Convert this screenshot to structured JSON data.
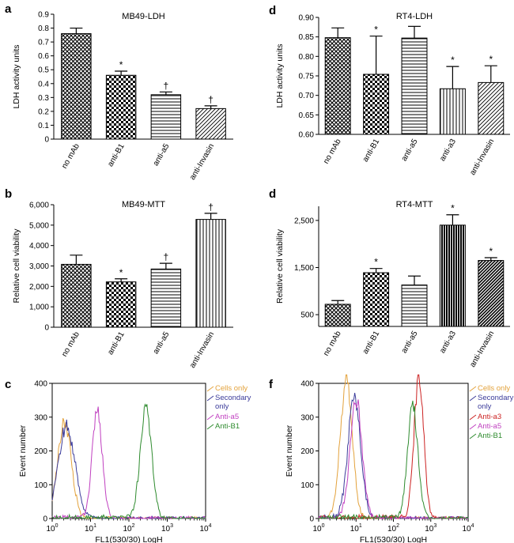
{
  "colors": {
    "cells_only": "#e3a23c",
    "secondary_only": "#3b3b9a",
    "anti_a5": "#c040c0",
    "anti_b1": "#2e8b2e",
    "anti_a3": "#cc2222"
  },
  "chart_data": [
    {
      "id": "a",
      "panel_label": "a",
      "type": "bar",
      "title": "MB49-LDH",
      "ylabel": "LDH activity units",
      "xlabel": "",
      "ylim": [
        0,
        0.9
      ],
      "ytick_values": [
        0,
        0.1,
        0.2,
        0.3,
        0.4,
        0.5,
        0.6,
        0.7,
        0.8,
        0.9
      ],
      "ytick_labels": [
        "0",
        "0.1",
        "0.2",
        "0.3",
        "0.4",
        "0.5",
        "0.6",
        "0.7",
        "0.8",
        "0.9"
      ],
      "categories": [
        "no mAb",
        "anti-B1",
        "anti-a5",
        "anti-Invasin"
      ],
      "values": [
        0.76,
        0.46,
        0.32,
        0.22
      ],
      "errors": [
        0.04,
        0.03,
        0.02,
        0.02
      ],
      "markers": [
        "",
        "*",
        "†",
        "†"
      ],
      "patterns": [
        "diamond",
        "checker",
        "hlines",
        "dhatch"
      ]
    },
    {
      "id": "d1",
      "panel_label": "d",
      "type": "bar",
      "title": "RT4-LDH",
      "ylabel": "LDH activity units",
      "xlabel": "",
      "ylim": [
        0.6,
        0.9
      ],
      "ytick_values": [
        0.6,
        0.65,
        0.7,
        0.75,
        0.8,
        0.85,
        0.9
      ],
      "ytick_labels": [
        "0.60",
        "0.65",
        "0.70",
        "0.75",
        "0.80",
        "0.85",
        "0.90"
      ],
      "categories": [
        "no mAb",
        "anti-B1",
        "anti-a5",
        "anti-a3",
        "anti-Invasin"
      ],
      "values": [
        0.848,
        0.754,
        0.847,
        0.717,
        0.733
      ],
      "errors": [
        0.025,
        0.098,
        0.03,
        0.057,
        0.043
      ],
      "markers": [
        "",
        "*",
        "",
        "*",
        "*"
      ],
      "patterns": [
        "diamond",
        "checker",
        "hlines",
        "vlines",
        "dhatch"
      ]
    },
    {
      "id": "b",
      "panel_label": "b",
      "type": "bar",
      "title": "MB49-MTT",
      "ylabel": "Relative cell viability",
      "xlabel": "",
      "ylim": [
        0,
        6000
      ],
      "ytick_values": [
        0,
        1000,
        2000,
        3000,
        4000,
        5000,
        6000
      ],
      "ytick_labels": [
        "0",
        "1,000",
        "2,000",
        "3,000",
        "4,000",
        "5,000",
        "6,000"
      ],
      "categories": [
        "no mAb",
        "anti-B1",
        "anti-a5",
        "anti-Invasin"
      ],
      "values": [
        3080,
        2220,
        2850,
        5280
      ],
      "errors": [
        450,
        150,
        280,
        300
      ],
      "markers": [
        "",
        "*",
        "†",
        "†"
      ],
      "patterns": [
        "diamond",
        "checker",
        "hlines",
        "vlines"
      ]
    },
    {
      "id": "d2",
      "panel_label": "d",
      "type": "bar",
      "title": "RT4-MTT",
      "ylabel": "Relative cell viability",
      "xlabel": "",
      "ylim": [
        250,
        2800
      ],
      "ytick_values": [
        500,
        1500,
        2500
      ],
      "ytick_labels": [
        "500",
        "1,500",
        "2,500"
      ],
      "categories": [
        "no mAb",
        "anti-B1",
        "anti-a5",
        "anti-a3",
        "anti-Invasin"
      ],
      "values": [
        720,
        1390,
        1130,
        2400,
        1650
      ],
      "errors": [
        80,
        90,
        190,
        220,
        60
      ],
      "markers": [
        "",
        "*",
        "",
        "*",
        "*"
      ],
      "patterns": [
        "diamond",
        "checker",
        "hlines",
        "vlinesdark",
        "dhatchdark"
      ]
    },
    {
      "id": "c",
      "panel_label": "c",
      "type": "line",
      "xscale": "log",
      "xlabel": "FL1(530/30) LogH",
      "ylabel": "Event number",
      "xlim": [
        1,
        10000
      ],
      "ylim": [
        0,
        400
      ],
      "ytick_values": [
        0,
        100,
        200,
        300,
        400
      ],
      "ytick_labels": [
        "0",
        "100",
        "200",
        "300",
        "400"
      ],
      "xtick_values": [
        1,
        10,
        100,
        1000,
        10000
      ],
      "xtick_bases": [
        "10",
        "10",
        "10",
        "10",
        "10"
      ],
      "xtick_exps": [
        "0",
        "1",
        "2",
        "3",
        "4"
      ],
      "legend_position": "top-right",
      "series": [
        {
          "name": "Cells only",
          "color_key": "cells_only",
          "peak_x": 2.1,
          "peak_y": 280,
          "width": 0.18
        },
        {
          "name": "Secondary only",
          "color_key": "secondary_only",
          "peak_x": 2.4,
          "peak_y": 268,
          "width": 0.22
        },
        {
          "name": "Anti-a5",
          "color_key": "anti_a5",
          "peak_x": 15,
          "peak_y": 318,
          "width": 0.13
        },
        {
          "name": "Anti-B1",
          "color_key": "anti_b1",
          "peak_x": 280,
          "peak_y": 325,
          "width": 0.15
        }
      ],
      "legend": [
        "Cells only",
        "Secondary only",
        "Anti-a5",
        "Anti-B1"
      ]
    },
    {
      "id": "f",
      "panel_label": "f",
      "type": "line",
      "xscale": "log",
      "xlabel": "FL1(530/30) LogH",
      "ylabel": "Event number",
      "xlim": [
        1,
        10000
      ],
      "ylim": [
        0,
        400
      ],
      "ytick_values": [
        0,
        100,
        200,
        300,
        400
      ],
      "ytick_labels": [
        "0",
        "100",
        "200",
        "300",
        "400"
      ],
      "xtick_values": [
        1,
        10,
        100,
        1000,
        10000
      ],
      "xtick_bases": [
        "10",
        "10",
        "10",
        "10",
        "10"
      ],
      "xtick_exps": [
        "0",
        "1",
        "2",
        "3",
        "4"
      ],
      "legend_position": "top-right",
      "series": [
        {
          "name": "Cells only",
          "color_key": "cells_only",
          "peak_x": 5.5,
          "peak_y": 410,
          "width": 0.16
        },
        {
          "name": "Secondary only",
          "color_key": "secondary_only",
          "peak_x": 9,
          "peak_y": 360,
          "width": 0.17
        },
        {
          "name": "Anti-a3",
          "color_key": "anti_a3",
          "peak_x": 480,
          "peak_y": 415,
          "width": 0.13
        },
        {
          "name": "Anti-a5",
          "color_key": "anti_a5",
          "peak_x": 10,
          "peak_y": 350,
          "width": 0.16
        },
        {
          "name": "Anti-B1",
          "color_key": "anti_b1",
          "peak_x": 330,
          "peak_y": 330,
          "width": 0.14
        }
      ],
      "legend": [
        "Cells only",
        "Secondary only",
        "Anti-a3",
        "Anti-a5",
        "Anti-B1"
      ]
    }
  ]
}
